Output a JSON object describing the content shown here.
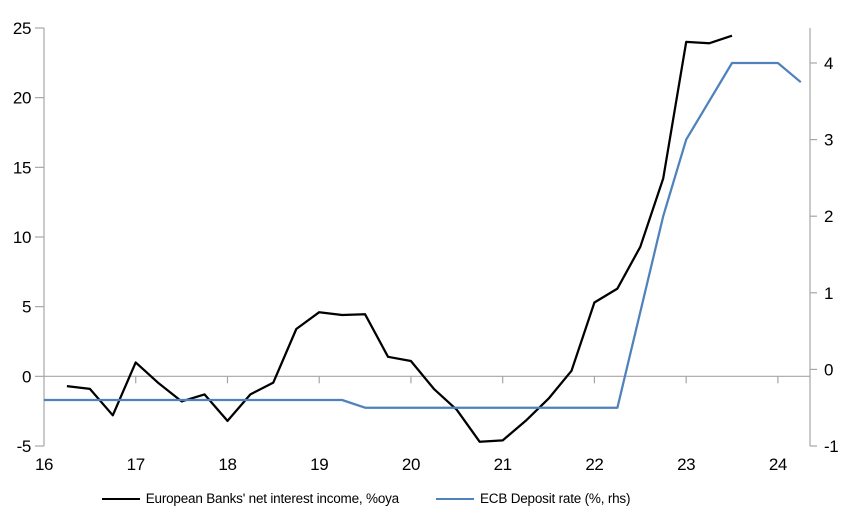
{
  "chart_data": {
    "type": "line",
    "title": "",
    "legend_position": "bottom",
    "grid": "zero-line-only",
    "x_axis": {
      "label": "",
      "tick_labels": [
        "16",
        "17",
        "18",
        "19",
        "20",
        "21",
        "22",
        "23",
        "24"
      ],
      "tick_values": [
        16,
        17,
        18,
        19,
        20,
        21,
        22,
        23,
        24
      ],
      "range": [
        16,
        24.35
      ]
    },
    "y_axis_left": {
      "label": "",
      "tick_labels": [
        "25",
        "20",
        "15",
        "10",
        "5",
        "0",
        "-5"
      ],
      "tick_values": [
        25,
        20,
        15,
        10,
        5,
        0,
        -5
      ],
      "range": [
        -5,
        25
      ]
    },
    "y_axis_right": {
      "label": "",
      "tick_labels": [
        "4",
        "3",
        "2",
        "1",
        "0",
        "-1"
      ],
      "tick_values": [
        4,
        3,
        2,
        1,
        0,
        -1
      ],
      "range": [
        -1,
        4.457
      ]
    },
    "series": [
      {
        "name": "European Banks' net interest income, %oya",
        "axis": "left",
        "color": "#000000",
        "x": [
          16.25,
          16.5,
          16.75,
          17,
          17.25,
          17.5,
          17.75,
          18,
          18.25,
          18.5,
          18.75,
          19,
          19.25,
          19.5,
          19.75,
          20,
          20.25,
          20.5,
          20.75,
          21,
          21.25,
          21.5,
          21.75,
          22,
          22.25,
          22.5,
          22.75,
          23,
          23.25,
          23.5
        ],
        "values": [
          -0.7,
          -0.9,
          -2.8,
          1.0,
          -0.5,
          -1.8,
          -1.3,
          -3.2,
          -1.3,
          -0.45,
          3.4,
          4.6,
          4.4,
          4.45,
          1.4,
          1.1,
          -0.9,
          -2.4,
          -4.7,
          -4.6,
          -3.2,
          -1.6,
          0.4,
          5.3,
          6.3,
          9.3,
          14.2,
          24.0,
          23.9,
          24.45
        ]
      },
      {
        "name": "ECB Deposit rate (%, rhs)",
        "axis": "right",
        "color": "#4F81BD",
        "x": [
          16,
          16.25,
          16.5,
          16.75,
          17,
          17.25,
          17.5,
          17.75,
          18,
          18.25,
          18.5,
          18.75,
          19,
          19.25,
          19.5,
          19.75,
          20,
          20.25,
          20.5,
          20.75,
          21,
          21.25,
          21.5,
          21.75,
          22,
          22.25,
          22.5,
          22.75,
          23,
          23.25,
          23.5,
          23.75,
          24,
          24.25
        ],
        "values": [
          -0.4,
          -0.4,
          -0.4,
          -0.4,
          -0.4,
          -0.4,
          -0.4,
          -0.4,
          -0.4,
          -0.4,
          -0.4,
          -0.4,
          -0.4,
          -0.4,
          -0.5,
          -0.5,
          -0.5,
          -0.5,
          -0.5,
          -0.5,
          -0.5,
          -0.5,
          -0.5,
          -0.5,
          -0.5,
          -0.5,
          0.75,
          2.0,
          3.0,
          3.5,
          4.0,
          4.0,
          4.0,
          3.75
        ]
      }
    ]
  },
  "colors": {
    "background": "#ffffff",
    "axis": "#a6a6a6",
    "text": "#000000",
    "accent_blue": "#4F81BD"
  }
}
